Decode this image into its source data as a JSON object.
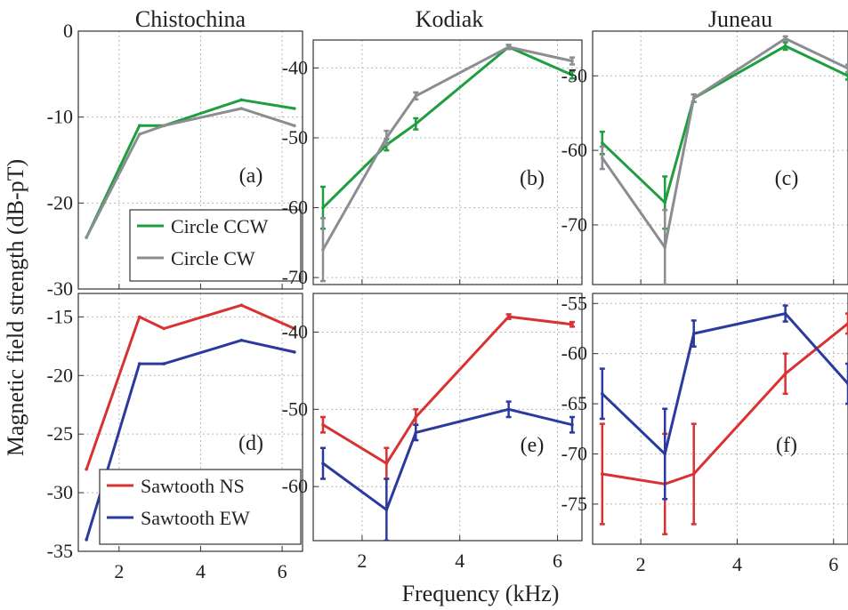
{
  "figure": {
    "ylabel": "Magnetic field strength (dB-pT)",
    "xlabel": "Frequency (kHz)"
  },
  "colors": {
    "green": "#1f9e3f",
    "gray": "#8a8d91",
    "red": "#d93232",
    "blue": "#2b3a9c"
  },
  "chart_data": [
    {
      "type": "line",
      "title": "Chistochina",
      "panel_label": "(a)",
      "x": [
        1.2,
        2.5,
        3.1,
        5.0,
        6.3
      ],
      "xlim": [
        1.0,
        6.5
      ],
      "xticks": [
        2,
        4,
        6
      ],
      "ylim": [
        -30,
        0
      ],
      "yticks": [
        0,
        -10,
        -20,
        -30
      ],
      "grid": true,
      "legend": "bottom-right",
      "series": [
        {
          "name": "Circle CCW",
          "color": "green",
          "values": [
            -24,
            -11,
            -11,
            -8,
            -9
          ],
          "err": [
            0,
            0,
            0,
            0,
            0
          ]
        },
        {
          "name": "Circle CW",
          "color": "gray",
          "values": [
            -24,
            -12,
            -11,
            -9,
            -11
          ],
          "err": [
            0,
            0,
            0,
            0,
            0
          ]
        }
      ]
    },
    {
      "type": "line",
      "title": "Kodiak",
      "panel_label": "(b)",
      "x": [
        1.2,
        2.5,
        3.1,
        5.0,
        6.3
      ],
      "xlim": [
        1.0,
        6.5
      ],
      "xticks": [
        2,
        4,
        6
      ],
      "ylim": [
        -71,
        -36
      ],
      "yticks": [
        -40,
        -50,
        -60,
        -70
      ],
      "grid": true,
      "legend": "none",
      "series": [
        {
          "name": "Circle CCW",
          "color": "green",
          "values": [
            -60,
            -51,
            -48,
            -37,
            -41
          ],
          "err": [
            3,
            0.8,
            0.8,
            0.3,
            0.5
          ]
        },
        {
          "name": "Circle CW",
          "color": "gray",
          "values": [
            -66,
            -50,
            -44,
            -37,
            -39
          ],
          "err": [
            4.5,
            1,
            0.5,
            0.3,
            0.5
          ]
        }
      ]
    },
    {
      "type": "line",
      "title": "Juneau",
      "panel_label": "(c)",
      "x": [
        1.2,
        2.5,
        3.1,
        5.0,
        6.3
      ],
      "xlim": [
        1.0,
        6.3
      ],
      "xticks": [
        2,
        4,
        6
      ],
      "ylim": [
        -78,
        -44
      ],
      "yticks": [
        -50,
        -60,
        -70
      ],
      "grid": true,
      "legend": "none",
      "series": [
        {
          "name": "Circle CCW",
          "color": "green",
          "values": [
            -59,
            -67,
            -53,
            -46,
            -50
          ],
          "err": [
            1.5,
            3.5,
            0.5,
            0.5,
            0.5
          ]
        },
        {
          "name": "Circle CW",
          "color": "gray",
          "values": [
            -61,
            -73,
            -53,
            -45,
            -49
          ],
          "err": [
            1.5,
            5,
            0.5,
            0.3,
            0.5
          ]
        }
      ]
    },
    {
      "type": "line",
      "title": "",
      "panel_label": "(d)",
      "x": [
        1.2,
        2.5,
        3.1,
        5.0,
        6.3
      ],
      "xlim": [
        1.0,
        6.5
      ],
      "xticks": [
        2,
        4,
        6
      ],
      "ylim": [
        -35,
        -13
      ],
      "yticks": [
        -15,
        -20,
        -25,
        -30,
        -35
      ],
      "grid": true,
      "legend": "bottom-right",
      "series": [
        {
          "name": "Sawtooth NS",
          "color": "red",
          "values": [
            -28,
            -15,
            -16,
            -14,
            -16
          ],
          "err": [
            0,
            0,
            0,
            0,
            0
          ]
        },
        {
          "name": "Sawtooth EW",
          "color": "blue",
          "values": [
            -34,
            -19,
            -19,
            -17,
            -18
          ],
          "err": [
            0,
            0,
            0,
            0,
            0
          ]
        }
      ]
    },
    {
      "type": "line",
      "title": "",
      "panel_label": "(e)",
      "x": [
        1.2,
        2.5,
        3.1,
        5.0,
        6.3
      ],
      "xlim": [
        1.0,
        6.5
      ],
      "xticks": [
        2,
        4,
        6
      ],
      "ylim": [
        -67,
        -35
      ],
      "yticks": [
        -40,
        -50,
        -60
      ],
      "grid": true,
      "legend": "none",
      "series": [
        {
          "name": "Sawtooth NS",
          "color": "red",
          "values": [
            -52,
            -57,
            -51,
            -38,
            -39
          ],
          "err": [
            1,
            2,
            1,
            0.3,
            0.3
          ]
        },
        {
          "name": "Sawtooth EW",
          "color": "blue",
          "values": [
            -57,
            -63,
            -53,
            -50,
            -52
          ],
          "err": [
            2,
            4,
            1,
            1,
            1
          ]
        }
      ]
    },
    {
      "type": "line",
      "title": "",
      "panel_label": "(f)",
      "x": [
        1.2,
        2.5,
        3.1,
        5.0,
        6.3
      ],
      "xlim": [
        1.0,
        6.3
      ],
      "xticks": [
        2,
        4,
        6
      ],
      "ylim": [
        -79,
        -54
      ],
      "yticks": [
        -55,
        -60,
        -65,
        -70,
        -75
      ],
      "grid": true,
      "legend": "none",
      "series": [
        {
          "name": "Sawtooth NS",
          "color": "red",
          "values": [
            -72,
            -73,
            -72,
            -62,
            -57
          ],
          "err": [
            5,
            5,
            5,
            2,
            1
          ]
        },
        {
          "name": "Sawtooth EW",
          "color": "blue",
          "values": [
            -64,
            -70,
            -58,
            -56,
            -63
          ],
          "err": [
            2.5,
            4.5,
            1.3,
            0.8,
            2
          ]
        }
      ]
    }
  ]
}
